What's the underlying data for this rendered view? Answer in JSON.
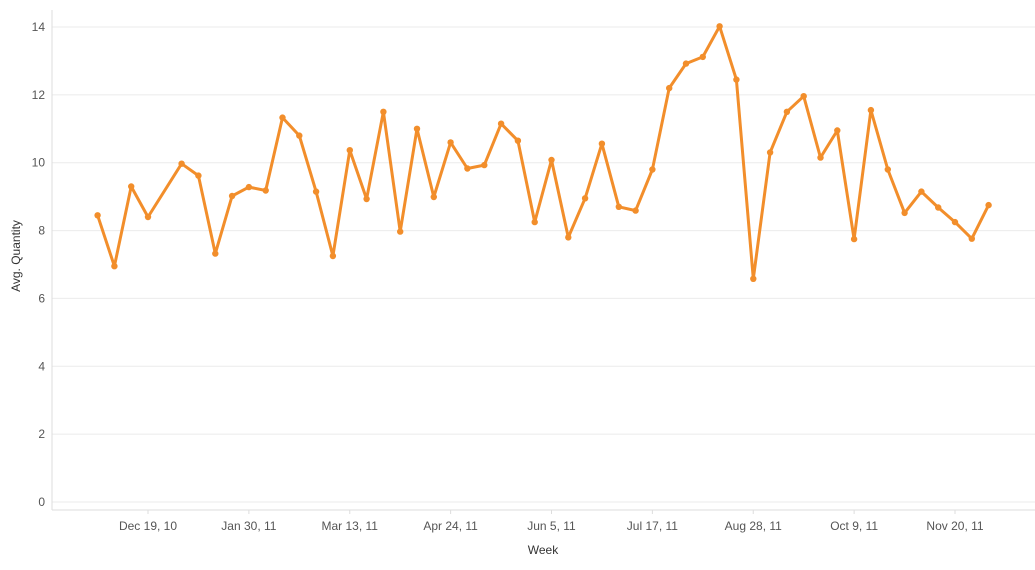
{
  "chart_data": {
    "type": "line",
    "title": "",
    "xlabel": "Week",
    "ylabel": "Avg. Quantity",
    "ylim": [
      0,
      14
    ],
    "yticks": [
      0,
      2,
      4,
      6,
      8,
      10,
      12,
      14
    ],
    "xticks": [
      "Dec 19, 10",
      "Jan 30, 11",
      "Mar 13, 11",
      "Apr 24, 11",
      "Jun 5, 11",
      "Jul 17, 11",
      "Aug 28, 11",
      "Oct 9, 11",
      "Nov 20, 11"
    ],
    "x": [
      "2010-11-28",
      "2010-12-05",
      "2010-12-12",
      "2010-12-19",
      "2011-01-02",
      "2011-01-09",
      "2011-01-16",
      "2011-01-23",
      "2011-01-30",
      "2011-02-06",
      "2011-02-13",
      "2011-02-20",
      "2011-02-27",
      "2011-03-06",
      "2011-03-13",
      "2011-03-20",
      "2011-03-27",
      "2011-04-03",
      "2011-04-10",
      "2011-04-17",
      "2011-04-24",
      "2011-05-01",
      "2011-05-08",
      "2011-05-15",
      "2011-05-22",
      "2011-05-29",
      "2011-06-05",
      "2011-06-12",
      "2011-06-19",
      "2011-06-26",
      "2011-07-03",
      "2011-07-10",
      "2011-07-17",
      "2011-07-24",
      "2011-07-31",
      "2011-08-07",
      "2011-08-14",
      "2011-08-21",
      "2011-08-28",
      "2011-09-04",
      "2011-09-11",
      "2011-09-18",
      "2011-09-25",
      "2011-10-02",
      "2011-10-09",
      "2011-10-16",
      "2011-10-23",
      "2011-10-30",
      "2011-11-06",
      "2011-11-13",
      "2011-11-20",
      "2011-11-27",
      "2011-12-04"
    ],
    "series": [
      {
        "values": [
          8.45,
          6.95,
          9.3,
          8.4,
          9.97,
          9.62,
          7.32,
          9.02,
          9.28,
          9.18,
          11.33,
          10.8,
          9.15,
          7.25,
          10.37,
          8.93,
          11.5,
          7.97,
          11.0,
          8.99,
          10.6,
          9.83,
          9.93,
          11.15,
          10.65,
          8.25,
          10.08,
          7.8,
          8.95,
          10.56,
          8.7,
          8.59,
          9.8,
          12.2,
          12.92,
          13.12,
          14.02,
          12.45,
          6.58,
          10.3,
          11.5,
          11.96,
          10.15,
          10.95,
          7.75,
          11.55,
          9.8,
          8.52,
          9.15,
          8.68,
          8.25,
          7.76,
          8.75
        ]
      }
    ],
    "colors": {
      "line": "#f28e2b",
      "grid": "#ebebeb",
      "axis": "#dddddd"
    },
    "grid": true
  }
}
